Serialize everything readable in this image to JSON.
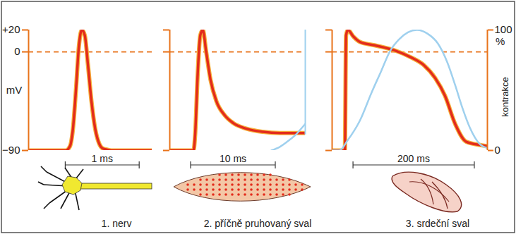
{
  "chart_data": [
    {
      "type": "line",
      "caption": "1. nerv",
      "ylabel": "mV",
      "xlim": [
        0,
        1.67
      ],
      "ylim": [
        -90,
        20
      ],
      "yticks": [
        {
          "value": 20,
          "label": "+20"
        },
        0,
        {
          "value": -90,
          "label": "−90"
        }
      ],
      "reference_line": 0,
      "scale_bar": {
        "from": 0.5,
        "to": 1.5,
        "label": "1 ms"
      },
      "series": [
        {
          "color": "#e32b1c",
          "x": [
            0,
            0.5,
            0.56,
            0.6,
            0.64,
            0.68,
            0.72,
            0.76,
            0.8,
            0.85,
            0.9,
            0.95,
            1.0,
            1.05,
            1.12,
            1.67
          ],
          "values": [
            -90,
            -90,
            -86,
            -70,
            -35,
            5,
            20,
            15,
            -10,
            -45,
            -70,
            -83,
            -88,
            -89,
            -90,
            -90
          ]
        }
      ]
    },
    {
      "type": "line",
      "caption": "2. příčně pruhovaný sval",
      "xlim": [
        0,
        16
      ],
      "ylim": [
        -90,
        20
      ],
      "y2lim": [
        0,
        100
      ],
      "yticks": [
        20,
        0,
        -90
      ],
      "tick_labels": false,
      "reference_line": 0,
      "scale_bar": {
        "from": 2.5,
        "to": 12.5,
        "label": "10 ms"
      },
      "series": [
        {
          "color": "#e32b1c",
          "x": [
            0,
            2.8,
            3.0,
            3.3,
            3.6,
            3.9,
            4.3,
            4.8,
            5.5,
            6.5,
            7.5,
            9,
            11,
            13,
            16
          ],
          "values": [
            -90,
            -90,
            -75,
            -20,
            15,
            20,
            0,
            -25,
            -45,
            -58,
            -65,
            -70,
            -73,
            -74,
            -74
          ]
        },
        {
          "color": "#9fd0ee",
          "axis": "y2",
          "x": [
            12,
            13,
            14,
            15,
            15.5,
            16
          ],
          "values": [
            0,
            3,
            8,
            14,
            18,
            22
          ]
        }
      ]
    },
    {
      "type": "line",
      "caption": "3. srdeční sval",
      "xlim": [
        0,
        256
      ],
      "ylim": [
        -90,
        20
      ],
      "y2lim": [
        0,
        100
      ],
      "yticks": [
        20,
        0,
        -90
      ],
      "tick_labels": false,
      "y2ticks": [
        0,
        100
      ],
      "y2label": "kontrakce",
      "y2unit": "%",
      "reference_line": 0,
      "scale_bar": {
        "from": 35,
        "to": 235,
        "label": "200 ms"
      },
      "series": [
        {
          "color": "#e32b1c",
          "x": [
            0,
            18,
            21,
            23,
            26,
            35,
            46,
            70,
            105,
            130,
            151,
            170,
            186,
            203,
            221,
            244,
            256
          ],
          "values": [
            -90,
            -90,
            -90,
            15,
            20,
            14,
            9,
            6,
            1,
            -5,
            -12,
            -24,
            -40,
            -66,
            -82,
            -85,
            -86
          ]
        },
        {
          "color": "#9fd0ee",
          "axis": "y2",
          "x": [
            0,
            12,
            25,
            46,
            65,
            81,
            95,
            110,
            125,
            140,
            157,
            174,
            190,
            203,
            215,
            227,
            244,
            256
          ],
          "values": [
            0,
            0,
            8,
            25,
            48,
            66,
            82,
            92,
            98,
            100,
            97,
            89,
            73,
            54,
            35,
            19,
            5,
            2
          ]
        }
      ]
    }
  ]
}
